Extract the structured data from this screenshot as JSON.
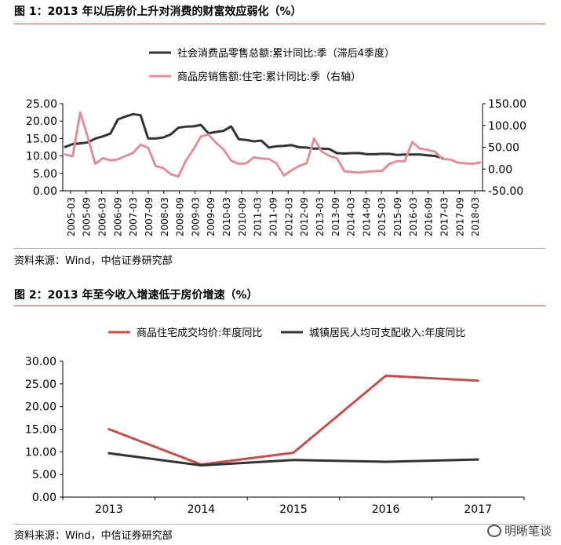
{
  "figures": [
    {
      "title": "图 1：2013 年以后房价上升对消费的财富效应弱化（%）",
      "source": "资料来源：Wind，中信证券研究部"
    },
    {
      "title": "图 2：2013 年至今收入增速低于房价增速（%）",
      "source": "资料来源：Wind，中信证券研究部"
    }
  ],
  "watermark": {
    "text": "明晰笔谈",
    "icon": "wechat-icon"
  },
  "chart_data": [
    {
      "type": "line",
      "title": "",
      "x_tick_labels": [
        "2005-03",
        "2005-09",
        "2006-03",
        "2006-09",
        "2007-03",
        "2007-09",
        "2008-03",
        "2008-09",
        "2009-03",
        "2009-09",
        "2010-03",
        "2010-09",
        "2011-03",
        "2011-09",
        "2012-03",
        "2012-09",
        "2013-03",
        "2013-09",
        "2014-03",
        "2014-09",
        "2015-03",
        "2015-09",
        "2016-03",
        "2016-09",
        "2017-03",
        "2017-09",
        "2018-03"
      ],
      "ylim_left": [
        0,
        25
      ],
      "yticks_left": [
        "0.00",
        "5.00",
        "10.00",
        "15.00",
        "20.00",
        "25.00"
      ],
      "ylim_right": [
        -50,
        150
      ],
      "yticks_right": [
        "-50.00",
        "0.00",
        "50.00",
        "100.00",
        "150.00"
      ],
      "grid": false,
      "legend_position": "top",
      "series": [
        {
          "name": "社会消费品零售总额:累计同比:季（滞后4季度）",
          "axis": "left",
          "color": "#333333",
          "values": [
            12.6,
            13.4,
            13.6,
            13.9,
            15.0,
            15.6,
            16.4,
            20.5,
            21.3,
            22.0,
            21.7,
            15.0,
            15.0,
            15.3,
            16.2,
            18.1,
            18.4,
            18.5,
            18.9,
            16.5,
            16.9,
            17.2,
            18.5,
            14.8,
            14.6,
            14.2,
            14.4,
            12.4,
            12.8,
            12.9,
            13.1,
            12.5,
            12.4,
            12.1,
            12.1,
            12.0,
            10.8,
            10.7,
            10.8,
            10.8,
            10.5,
            10.5,
            10.6,
            10.6,
            10.3,
            10.4,
            10.4,
            10.4,
            10.2,
            10.0,
            9.4
          ],
          "start_index": 0
        },
        {
          "name": "商品房销售额:住宅:累计同比:季（右轴）",
          "axis": "right",
          "color": "#e08f9a",
          "values": [
            34.0,
            29.0,
            130.0,
            73.0,
            12.0,
            25.0,
            20.0,
            22.0,
            30.0,
            37.0,
            56.0,
            49.0,
            7.0,
            2.0,
            -12.0,
            -17.0,
            19.0,
            45.0,
            75.0,
            79.0,
            60.0,
            45.0,
            19.0,
            12.0,
            13.0,
            27.0,
            24.0,
            23.0,
            13.0,
            -15.0,
            -3.0,
            7.0,
            13.0,
            70.0,
            40.0,
            30.0,
            25.0,
            -5.0,
            -7.0,
            -8.0,
            -6.0,
            -5.0,
            -4.0,
            12.0,
            18.0,
            18.0,
            62.0,
            47.0,
            44.0,
            40.0,
            23.0,
            22.0,
            15.0,
            13.0,
            12.0,
            15.0
          ],
          "start_index": 0
        }
      ]
    },
    {
      "type": "line",
      "title": "",
      "categories": [
        "2013",
        "2014",
        "2015",
        "2016",
        "2017"
      ],
      "ylim": [
        0,
        30
      ],
      "yticks": [
        "0.00",
        "5.00",
        "10.00",
        "15.00",
        "20.00",
        "25.00",
        "30.00"
      ],
      "grid": false,
      "legend_position": "top",
      "series": [
        {
          "name": "商品住宅成交均价:年度同比",
          "color": "#c0504d",
          "values": [
            15.0,
            7.2,
            9.8,
            26.8,
            25.7
          ]
        },
        {
          "name": "城镇居民人均可支配收入:年度同比",
          "color": "#333333",
          "values": [
            9.7,
            7.0,
            8.2,
            7.8,
            8.3
          ]
        }
      ]
    }
  ]
}
